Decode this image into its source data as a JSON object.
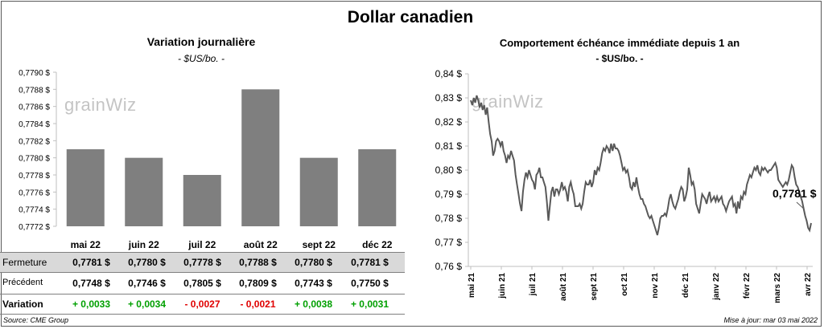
{
  "title": "Dollar canadien",
  "colors": {
    "bar": "#7f7f7f",
    "line": "#595959",
    "positive": "#00a000",
    "negative": "#e00000",
    "shade": "#d9d9d9"
  },
  "watermark": "grainwiz",
  "left_chart": {
    "title": "Variation  journalière",
    "subtitle": "- $US/bo. -"
  },
  "right_chart": {
    "title": "Comportement échéance immédiate depuis 1 an",
    "subtitle": "- $US/bo. -",
    "last_value_label": "0,7781 $"
  },
  "table": {
    "rows": [
      {
        "label": "Fermeture",
        "values": [
          "0,7781  $",
          "0,7780  $",
          "0,7778  $",
          "0,7788  $",
          "0,7780  $",
          "0,7781  $"
        ]
      },
      {
        "label": "Précédent",
        "values": [
          "0,7748  $",
          "0,7746  $",
          "0,7805  $",
          "0,7809  $",
          "0,7743  $",
          "0,7750  $"
        ]
      },
      {
        "label": "Variation",
        "values": [
          "+ 0,0033",
          "+ 0,0034",
          "- 0,0027",
          "- 0,0021",
          "+ 0,0038",
          "+ 0,0031"
        ],
        "signs": [
          "pos",
          "pos",
          "neg",
          "neg",
          "pos",
          "pos"
        ]
      }
    ]
  },
  "footer": {
    "source": "Source: CME Group",
    "updated": "Mise à jour: mar 03 mai 2022"
  },
  "chart_data": [
    {
      "type": "bar",
      "categories": [
        "mai 22",
        "juin 22",
        "juil 22",
        "août 22",
        "sept 22",
        "déc 22"
      ],
      "values": [
        0.7781,
        0.778,
        0.7778,
        0.7788,
        0.778,
        0.7781
      ],
      "title": "Variation  journalière",
      "subtitle": "- $US/bo. -",
      "ylim": [
        0.7772,
        0.779
      ],
      "yticks": [
        "0,7772 $",
        "0,7774 $",
        "0,7776 $",
        "0,7778 $",
        "0,7780 $",
        "0,7782 $",
        "0,7784 $",
        "0,7786 $",
        "0,7788 $",
        "0,7790 $"
      ],
      "grid": false
    },
    {
      "type": "line",
      "title": "Comportement échéance immédiate depuis 1 an",
      "subtitle": "- $US/bo. -",
      "ylim": [
        0.76,
        0.84
      ],
      "yticks": [
        "0,76 $",
        "0,77 $",
        "0,78 $",
        "0,79 $",
        "0,80 $",
        "0,81 $",
        "0,82 $",
        "0,83 $",
        "0,84 $"
      ],
      "xticks": [
        "mai 21",
        "juin 21",
        "juil 21",
        "août 21",
        "sept 21",
        "oct 21",
        "nov 21",
        "déc 21",
        "janv 22",
        "févr 22",
        "mars 22",
        "avr 22"
      ],
      "values": [
        0.829,
        0.827,
        0.83,
        0.828,
        0.831,
        0.829,
        0.826,
        0.828,
        0.825,
        0.827,
        0.823,
        0.826,
        0.82,
        0.815,
        0.812,
        0.806,
        0.808,
        0.812,
        0.813,
        0.812,
        0.81,
        0.812,
        0.808,
        0.806,
        0.803,
        0.806,
        0.805,
        0.808,
        0.806,
        0.804,
        0.798,
        0.794,
        0.79,
        0.786,
        0.783,
        0.791,
        0.796,
        0.799,
        0.797,
        0.8,
        0.798,
        0.796,
        0.795,
        0.792,
        0.798,
        0.799,
        0.801,
        0.797,
        0.797,
        0.795,
        0.793,
        0.787,
        0.779,
        0.785,
        0.791,
        0.793,
        0.789,
        0.792,
        0.792,
        0.79,
        0.792,
        0.795,
        0.792,
        0.793,
        0.791,
        0.787,
        0.793,
        0.795,
        0.792,
        0.79,
        0.785,
        0.785,
        0.785,
        0.786,
        0.784,
        0.786,
        0.791,
        0.795,
        0.794,
        0.794,
        0.796,
        0.793,
        0.795,
        0.8,
        0.798,
        0.801,
        0.8,
        0.803,
        0.807,
        0.809,
        0.808,
        0.81,
        0.809,
        0.807,
        0.811,
        0.808,
        0.811,
        0.809,
        0.809,
        0.808,
        0.806,
        0.803,
        0.8,
        0.801,
        0.799,
        0.8,
        0.797,
        0.793,
        0.792,
        0.795,
        0.793,
        0.797,
        0.793,
        0.79,
        0.788,
        0.788,
        0.786,
        0.785,
        0.783,
        0.781,
        0.78,
        0.781,
        0.779,
        0.777,
        0.775,
        0.773,
        0.776,
        0.78,
        0.781,
        0.781,
        0.782,
        0.781,
        0.784,
        0.788,
        0.79,
        0.787,
        0.785,
        0.784,
        0.786,
        0.788,
        0.791,
        0.793,
        0.792,
        0.787,
        0.789,
        0.792,
        0.801,
        0.798,
        0.794,
        0.795,
        0.792,
        0.786,
        0.784,
        0.782,
        0.786,
        0.79,
        0.789,
        0.788,
        0.786,
        0.789,
        0.791,
        0.787,
        0.788,
        0.789,
        0.787,
        0.789,
        0.787,
        0.788,
        0.789,
        0.786,
        0.785,
        0.783,
        0.785,
        0.787,
        0.788,
        0.789,
        0.785,
        0.786,
        0.782,
        0.787,
        0.784,
        0.789,
        0.788,
        0.791,
        0.79,
        0.794,
        0.796,
        0.798,
        0.797,
        0.799,
        0.801,
        0.8,
        0.802,
        0.799,
        0.798,
        0.801,
        0.8,
        0.801,
        0.8,
        0.799,
        0.8,
        0.8,
        0.801,
        0.802,
        0.803,
        0.801,
        0.796,
        0.795,
        0.794,
        0.793,
        0.794,
        0.795,
        0.794,
        0.796,
        0.799,
        0.802,
        0.801,
        0.797,
        0.794,
        0.793,
        0.791,
        0.789,
        0.787,
        0.784,
        0.781,
        0.779,
        0.776,
        0.775,
        0.778
      ]
    }
  ]
}
